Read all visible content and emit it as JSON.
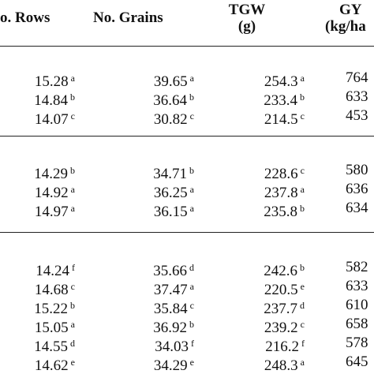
{
  "header": {
    "rows_label": "o. Rows",
    "grains_label": "No. Grains",
    "tgw_line1": "TGW",
    "tgw_line2": "(g)",
    "gy_line1": "GY",
    "gy_line2": "(kg/ha"
  },
  "groups": [
    {
      "rows": [
        {
          "r": "15.28",
          "rs": "a",
          "g": "39.65",
          "gs": "a",
          "t": "254.3",
          "ts": "a",
          "y": "764"
        },
        {
          "r": "14.84",
          "rs": "b",
          "g": "36.64",
          "gs": "b",
          "t": "233.4",
          "ts": "b",
          "y": "633"
        },
        {
          "r": "14.07",
          "rs": "c",
          "g": "30.82",
          "gs": "c",
          "t": "214.5",
          "ts": "c",
          "y": "453"
        }
      ]
    },
    {
      "rows": [
        {
          "r": "14.29",
          "rs": "b",
          "g": "34.71",
          "gs": "b",
          "t": "228.6",
          "ts": "c",
          "y": "580"
        },
        {
          "r": "14.92",
          "rs": "a",
          "g": "36.25",
          "gs": "a",
          "t": "237.8",
          "ts": "a",
          "y": "636"
        },
        {
          "r": "14.97",
          "rs": "a",
          "g": "36.15",
          "gs": "a",
          "t": "235.8",
          "ts": "b",
          "y": "634"
        }
      ]
    },
    {
      "rows": [
        {
          "r": "14.24",
          "rs": "f",
          "g": "35.66",
          "gs": "d",
          "t": "242.6",
          "ts": "b",
          "y": "582"
        },
        {
          "r": "14.68",
          "rs": "c",
          "g": "37.47",
          "gs": "a",
          "t": "220.5",
          "ts": "e",
          "y": "633"
        },
        {
          "r": "15.22",
          "rs": "b",
          "g": "35.84",
          "gs": "c",
          "t": "237.7",
          "ts": "d",
          "y": "610"
        },
        {
          "r": "15.05",
          "rs": "a",
          "g": "36.92",
          "gs": "b",
          "t": "239.2",
          "ts": "c",
          "y": "658"
        },
        {
          "r": "14.55",
          "rs": "d",
          "g": "34.03",
          "gs": "f",
          "t": "216.2",
          "ts": "f",
          "y": "578"
        },
        {
          "r": "14.62",
          "rs": "e",
          "g": "34.29",
          "gs": "e",
          "t": "248.3",
          "ts": "a",
          "y": "645"
        }
      ]
    }
  ]
}
